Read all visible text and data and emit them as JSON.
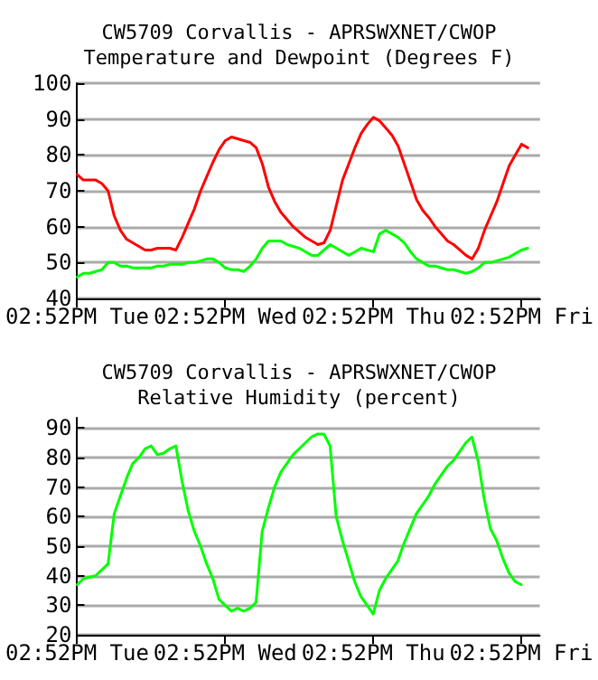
{
  "chart_data": [
    {
      "type": "line",
      "title": "CW5709 Corvallis - APRSWXNET/CWOP",
      "subtitle": "Temperature and Dewpoint (Degrees F)",
      "categories": [
        "02:52PM Tue",
        null,
        null,
        null,
        null,
        null,
        null,
        null,
        null,
        null,
        null,
        null,
        null,
        null,
        null,
        null,
        null,
        null,
        null,
        null,
        null,
        null,
        null,
        null,
        "02:52PM Wed",
        null,
        null,
        null,
        null,
        null,
        null,
        null,
        null,
        null,
        null,
        null,
        null,
        null,
        null,
        null,
        null,
        null,
        null,
        null,
        null,
        null,
        null,
        null,
        "02:52PM Thu",
        null,
        null,
        null,
        null,
        null,
        null,
        null,
        null,
        null,
        null,
        null,
        null,
        null,
        null,
        null,
        null,
        null,
        null,
        null,
        null,
        null,
        null,
        null,
        "02:52PM Fri",
        null,
        null,
        null
      ],
      "ylim": [
        40,
        100
      ],
      "yticks": [
        40,
        50,
        60,
        70,
        80,
        90,
        100
      ],
      "grid": "y",
      "marker": "none",
      "line_style": "solid",
      "series": [
        {
          "color": "#ff0000",
          "values": [
            74.5,
            73,
            73,
            73,
            72,
            70,
            63,
            59,
            56.5,
            55.5,
            54.5,
            53.5,
            53.5,
            54,
            54,
            54,
            53.5,
            57,
            61,
            65,
            70,
            74,
            78,
            81.5,
            84,
            85,
            84.5,
            84,
            83.5,
            82,
            77.5,
            71,
            67,
            64,
            62,
            60,
            58.5,
            57,
            56,
            55,
            55.5,
            59,
            66,
            73,
            77.5,
            82,
            86,
            88.5,
            90.5,
            89.5,
            87.5,
            85.5,
            82.5,
            77.5,
            72.5,
            67.5,
            64.5,
            62.5,
            60,
            58,
            56,
            55,
            53.5,
            52,
            51,
            54,
            59,
            63,
            67,
            72,
            77,
            80,
            83,
            82,
            null,
            null
          ]
        },
        {
          "color": "#00ff00",
          "values": [
            46,
            47,
            47,
            47.5,
            48,
            50,
            50,
            49,
            49,
            48.5,
            48.5,
            48.5,
            48.5,
            49,
            49,
            49.5,
            49.5,
            49.5,
            50,
            50,
            50.5,
            51,
            51,
            50,
            48.5,
            48,
            48,
            47.5,
            49,
            51,
            54,
            56,
            56,
            56,
            55,
            54.5,
            54,
            53,
            52,
            52,
            53.5,
            55,
            54,
            53,
            52,
            53,
            54,
            53.5,
            53,
            58,
            59,
            58,
            57,
            55.5,
            53,
            51,
            50,
            49,
            49,
            48.5,
            48,
            48,
            47.5,
            47,
            47.5,
            48.5,
            50,
            50,
            50.5,
            51,
            51.5,
            52.5,
            53.5,
            54,
            null,
            null
          ]
        }
      ]
    },
    {
      "type": "line",
      "title": "CW5709 Corvallis - APRSWXNET/CWOP",
      "subtitle": "Relative Humidity (percent)",
      "categories": [
        "02:52PM Tue",
        null,
        null,
        null,
        null,
        null,
        null,
        null,
        null,
        null,
        null,
        null,
        null,
        null,
        null,
        null,
        null,
        null,
        null,
        null,
        null,
        null,
        null,
        null,
        "02:52PM Wed",
        null,
        null,
        null,
        null,
        null,
        null,
        null,
        null,
        null,
        null,
        null,
        null,
        null,
        null,
        null,
        null,
        null,
        null,
        null,
        null,
        null,
        null,
        null,
        "02:52PM Thu",
        null,
        null,
        null,
        null,
        null,
        null,
        null,
        null,
        null,
        null,
        null,
        null,
        null,
        null,
        null,
        null,
        null,
        null,
        null,
        null,
        null,
        null,
        null,
        "02:52PM Fri",
        null,
        null,
        null
      ],
      "ylim": [
        20,
        93.5
      ],
      "yticks": [
        20,
        30,
        40,
        50,
        60,
        70,
        80,
        90
      ],
      "grid": "y",
      "marker": "none",
      "line_style": "solid",
      "series": [
        {
          "color": "#00ff00",
          "values": [
            37,
            39,
            39.5,
            40,
            42,
            44,
            61,
            67,
            73,
            78,
            80,
            83,
            84,
            81,
            81.5,
            83,
            84,
            72,
            62,
            55,
            50,
            44,
            39,
            32,
            30,
            28,
            29,
            28,
            29,
            31,
            55,
            63,
            70,
            75,
            78,
            81,
            83,
            85,
            87,
            88,
            88,
            84,
            60,
            52,
            45,
            38,
            33,
            30,
            27,
            35,
            39,
            42,
            45,
            51,
            56,
            61,
            64,
            67,
            71,
            74,
            77,
            79,
            82,
            85,
            87,
            79,
            66,
            56,
            52,
            46,
            41,
            38,
            37,
            null,
            null,
            null
          ]
        }
      ]
    }
  ]
}
